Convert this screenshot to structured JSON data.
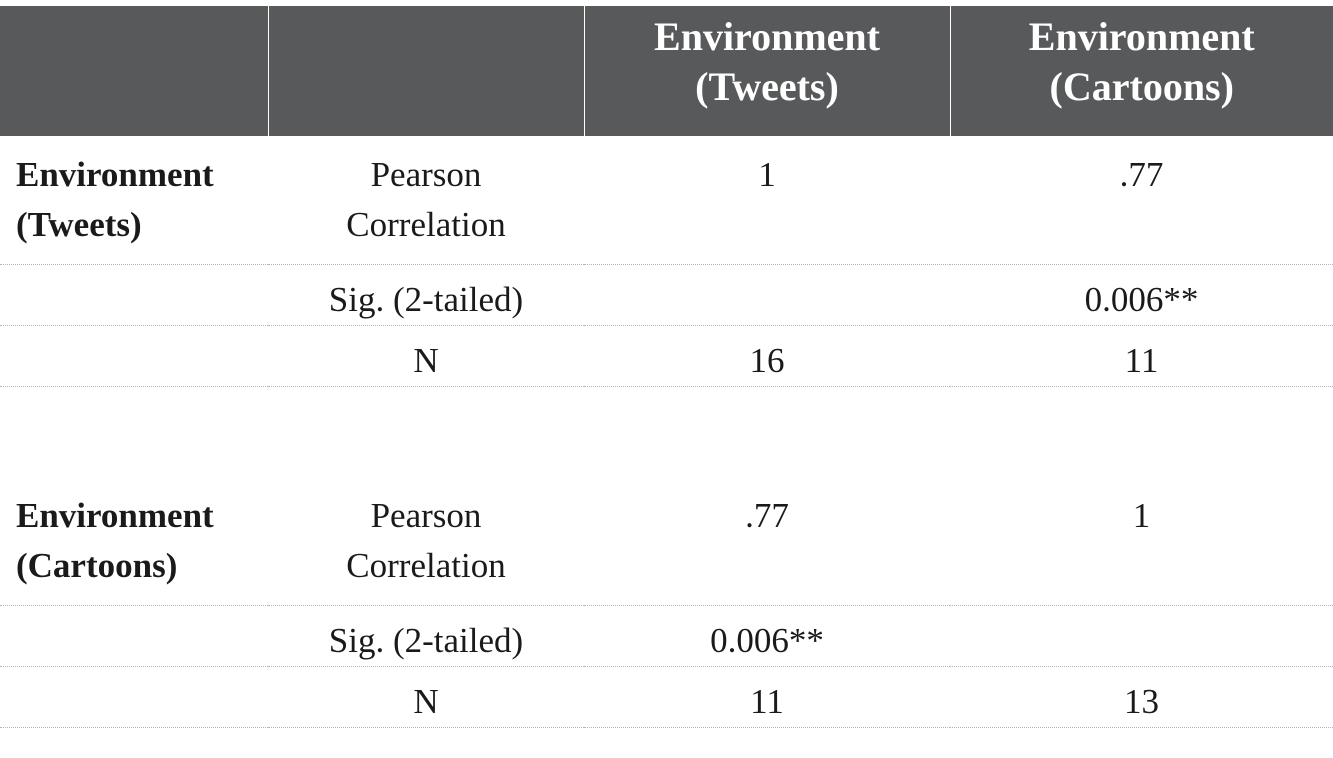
{
  "header": {
    "col1": "",
    "col2": "",
    "col3_line1": "Environment",
    "col3_line2": "(Tweets)",
    "col4_line1": "Environment",
    "col4_line2": "(Cartoons)"
  },
  "groups": [
    {
      "label_line1": "Environment",
      "label_line2": "(Tweets)",
      "rows": [
        {
          "stat_line1": "Pearson",
          "stat_line2": "Correlation",
          "tweets": "1",
          "cartoons": ".77"
        },
        {
          "stat": "Sig. (2-tailed)",
          "tweets": "",
          "cartoons": "0.006**"
        },
        {
          "stat": "N",
          "tweets": "16",
          "cartoons": "11"
        }
      ]
    },
    {
      "label_line1": "Environment",
      "label_line2": "(Cartoons)",
      "rows": [
        {
          "stat_line1": "Pearson",
          "stat_line2": "Correlation",
          "tweets": ".77",
          "cartoons": "1"
        },
        {
          "stat": "Sig. (2-tailed)",
          "tweets": "0.006**",
          "cartoons": ""
        },
        {
          "stat": "N",
          "tweets": "11",
          "cartoons": "13"
        }
      ]
    }
  ]
}
